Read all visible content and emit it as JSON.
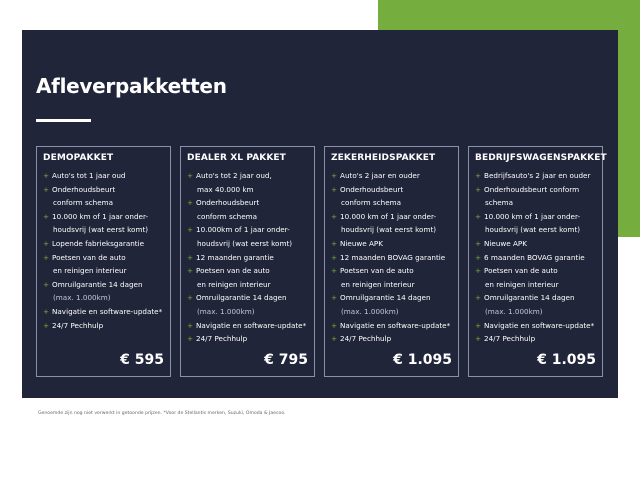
{
  "title": "Afleverpakketten",
  "colors": {
    "panel": "#212539",
    "accent": "#76ad3f"
  },
  "packages": [
    {
      "name": "DEMOPAKKET",
      "price": "€ 595",
      "items": [
        {
          "t": "Auto's tot 1 jaar oud",
          "b": true
        },
        {
          "t": "Onderhoudsbeurt",
          "b": true
        },
        {
          "t": "conform schema"
        },
        {
          "t": "10.000 km of 1 jaar onder-",
          "b": true
        },
        {
          "t": "houdsvrij (wat eerst komt)"
        },
        {
          "t": "Lopende fabrieksgarantie",
          "b": true
        },
        {
          "t": "Poetsen van de auto",
          "b": true
        },
        {
          "t": "en reinigen interieur"
        },
        {
          "t": "Omruilgarantie 14 dagen",
          "b": true
        },
        {
          "t": "(max. 1.000km)",
          "m": true
        },
        {
          "t": "Navigatie en software-update*",
          "b": true
        },
        {
          "t": "24/7 Pechhulp",
          "b": true
        }
      ]
    },
    {
      "name": "DEALER XL PAKKET",
      "price": "€ 795",
      "items": [
        {
          "t": "Auto's tot 2 jaar oud,",
          "b": true
        },
        {
          "t": "max 40.000 km"
        },
        {
          "t": "Onderhoudsbeurt",
          "b": true
        },
        {
          "t": "conform schema"
        },
        {
          "t": "10.000km of 1 jaar onder-",
          "b": true
        },
        {
          "t": "houdsvrij (wat eerst komt)"
        },
        {
          "t": "12 maanden garantie",
          "b": true
        },
        {
          "t": "Poetsen van de auto",
          "b": true
        },
        {
          "t": "en reinigen interieur"
        },
        {
          "t": "Omruilgarantie 14 dagen",
          "b": true
        },
        {
          "t": "(max. 1.000km)",
          "m": true
        },
        {
          "t": "Navigatie en software-update*",
          "b": true
        },
        {
          "t": "24/7 Pechhulp",
          "b": true
        }
      ]
    },
    {
      "name": "ZEKERHEIDSPAKKET",
      "price": "€ 1.095",
      "items": [
        {
          "t": "Auto's 2 jaar en ouder",
          "b": true
        },
        {
          "t": "Onderhoudsbeurt",
          "b": true
        },
        {
          "t": "conform schema"
        },
        {
          "t": "10.000 km of 1 jaar onder-",
          "b": true
        },
        {
          "t": "houdsvrij (wat eerst komt)"
        },
        {
          "t": "Nieuwe APK",
          "b": true
        },
        {
          "t": "12 maanden BOVAG garantie",
          "b": true
        },
        {
          "t": "Poetsen van de auto",
          "b": true
        },
        {
          "t": "en reinigen interieur"
        },
        {
          "t": "Omruilgarantie 14 dagen",
          "b": true
        },
        {
          "t": "(max. 1.000km)",
          "m": true
        },
        {
          "t": "Navigatie en software-update*",
          "b": true
        },
        {
          "t": "24/7 Pechhulp",
          "b": true
        }
      ]
    },
    {
      "name": "BEDRIJFSWAGENSPAKKET",
      "price": "€ 1.095",
      "items": [
        {
          "t": "Bedrijfsauto's 2 jaar en ouder",
          "b": true
        },
        {
          "t": "Onderhoudsbeurt conform",
          "b": true
        },
        {
          "t": "schema"
        },
        {
          "t": "10.000 km of 1 jaar onder-",
          "b": true
        },
        {
          "t": "houdsvrij (wat eerst komt)"
        },
        {
          "t": "Nieuwe APK",
          "b": true
        },
        {
          "t": "6 maanden BOVAG garantie",
          "b": true
        },
        {
          "t": "Poetsen van de auto",
          "b": true
        },
        {
          "t": "en reinigen interieur"
        },
        {
          "t": "Omruilgarantie 14 dagen",
          "b": true
        },
        {
          "t": "(max. 1.000km)",
          "m": true
        },
        {
          "t": "Navigatie en software-update*",
          "b": true
        },
        {
          "t": "24/7 Pechhulp",
          "b": true
        }
      ]
    }
  ],
  "bullet": "+",
  "footnote": "Genoemde zijn nog niet verwerkt in getoonde prijzen. *Voor de Stellantis merken, Suzuki, Omoda & Jaecoo."
}
